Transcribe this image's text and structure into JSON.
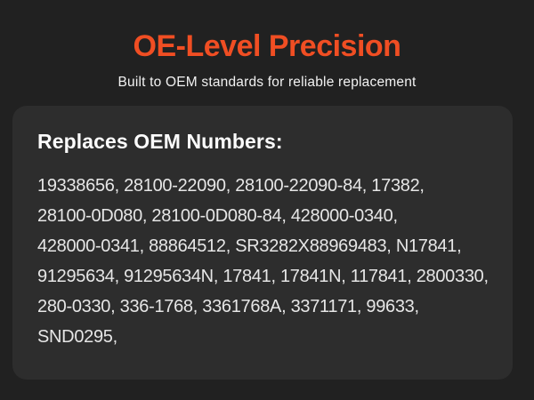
{
  "colors": {
    "page_background": "#212121",
    "card_background": "#2D2D2D",
    "accent_orange": "#F04E23",
    "subtitle_text": "#F2F2F2",
    "card_heading_text": "#FCFCFC",
    "body_text": "#E6E6E6"
  },
  "header": {
    "title": "OE-Level Precision",
    "subtitle": "Built to OEM standards for reliable replacement"
  },
  "card": {
    "heading": "Replaces OEM Numbers:",
    "lines": [
      "19338656, 28100-22090, 28100-22090-84, 17382,",
      "28100-0D080, 28100-0D080-84, 428000-0340,",
      "428000-0341, 88864512, SR3282X88969483, N17841,",
      "91295634, 91295634N, 17841, 17841N, 117841, 2800330,",
      "280-0330, 336-1768, 3361768A, 3371171, 99633,",
      "SND0295,"
    ]
  }
}
